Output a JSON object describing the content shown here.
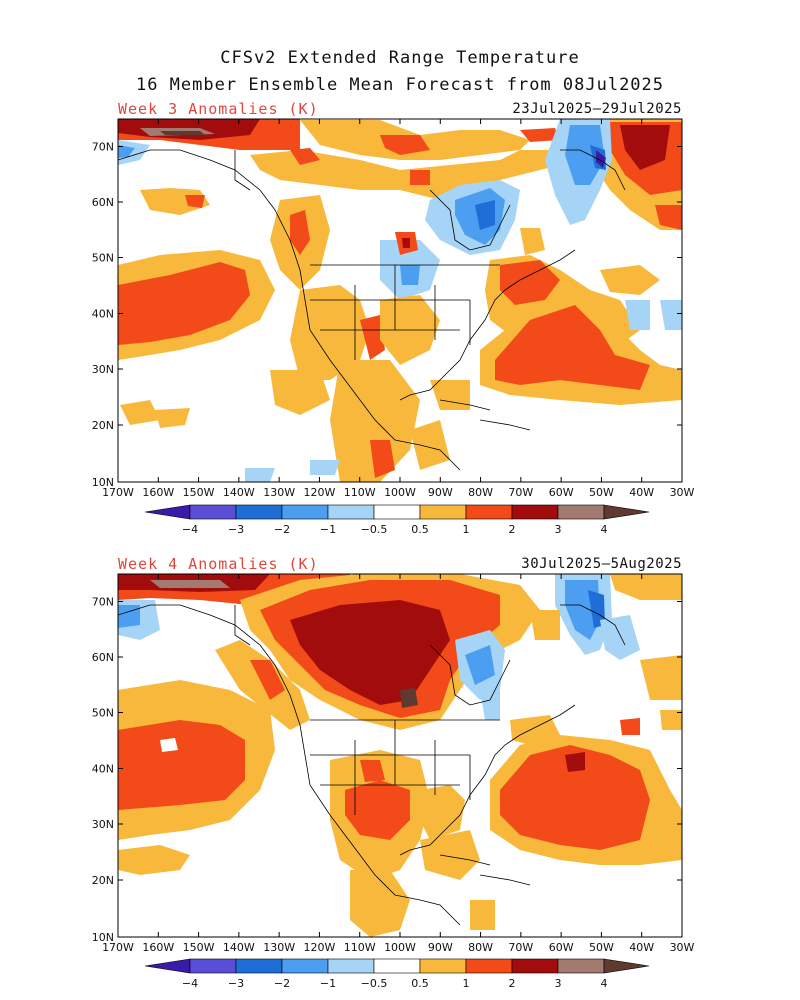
{
  "title_line1": "CFSv2 Extended Range Temperature",
  "title_line2": "16 Member Ensemble Mean Forecast from 08Jul2025",
  "panels": [
    {
      "label": "Week 3 Anomalies (K)",
      "dates": "23Jul2025–29Jul2025"
    },
    {
      "label": "Week 4 Anomalies (K)",
      "dates": "30Jul2025—5Aug2025"
    }
  ],
  "lat_labels": [
    "70N",
    "60N",
    "50N",
    "40N",
    "30N",
    "20N",
    "10N"
  ],
  "lon_labels": [
    "170W",
    "160W",
    "150W",
    "140W",
    "130W",
    "120W",
    "110W",
    "100W",
    "90W",
    "80W",
    "70W",
    "60W",
    "50W",
    "40W",
    "30W"
  ],
  "colorbar": {
    "labels": [
      "−4",
      "−3",
      "−2",
      "−1",
      "−0.5",
      "0.5",
      "1",
      "2",
      "3",
      "4"
    ],
    "colors": [
      "#3a1aa8",
      "#5a4ed6",
      "#1f6ed8",
      "#4c9ef0",
      "#a6d4f7",
      "#ffffff",
      "#f8b83c",
      "#f24a18",
      "#a20c0c",
      "#a37a70",
      "#5e3a30"
    ]
  },
  "colors": {
    "land_outline": "#000000",
    "label_red": "#e0463c"
  }
}
